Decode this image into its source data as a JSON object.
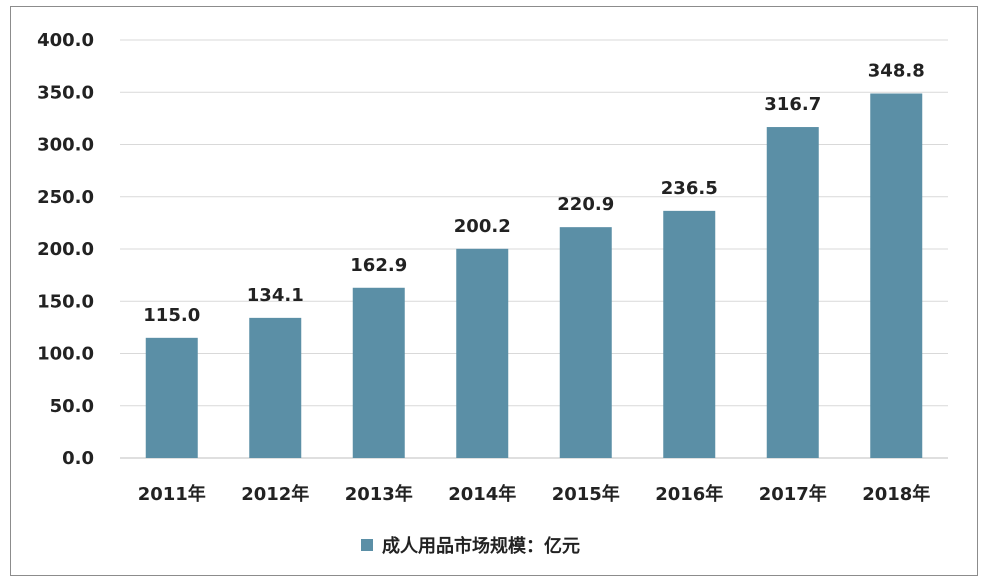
{
  "chart_data": {
    "type": "bar",
    "categories": [
      "2011年",
      "2012年",
      "2013年",
      "2014年",
      "2015年",
      "2016年",
      "2017年",
      "2018年"
    ],
    "series": [
      {
        "name": "成人用品市场规模：亿元",
        "values": [
          115.0,
          134.1,
          162.9,
          200.2,
          220.9,
          236.5,
          316.7,
          348.8
        ],
        "value_labels": [
          "115.0",
          "134.1",
          "162.9",
          "200.2",
          "220.9",
          "236.5",
          "316.7",
          "348.8"
        ],
        "color": "#5b8fa6"
      }
    ],
    "yticks": [
      "0.0",
      "50.0",
      "100.0",
      "150.0",
      "200.0",
      "250.0",
      "300.0",
      "350.0",
      "400.0"
    ],
    "ylim": [
      0,
      400
    ],
    "grid": true,
    "legend_position": "bottom"
  }
}
